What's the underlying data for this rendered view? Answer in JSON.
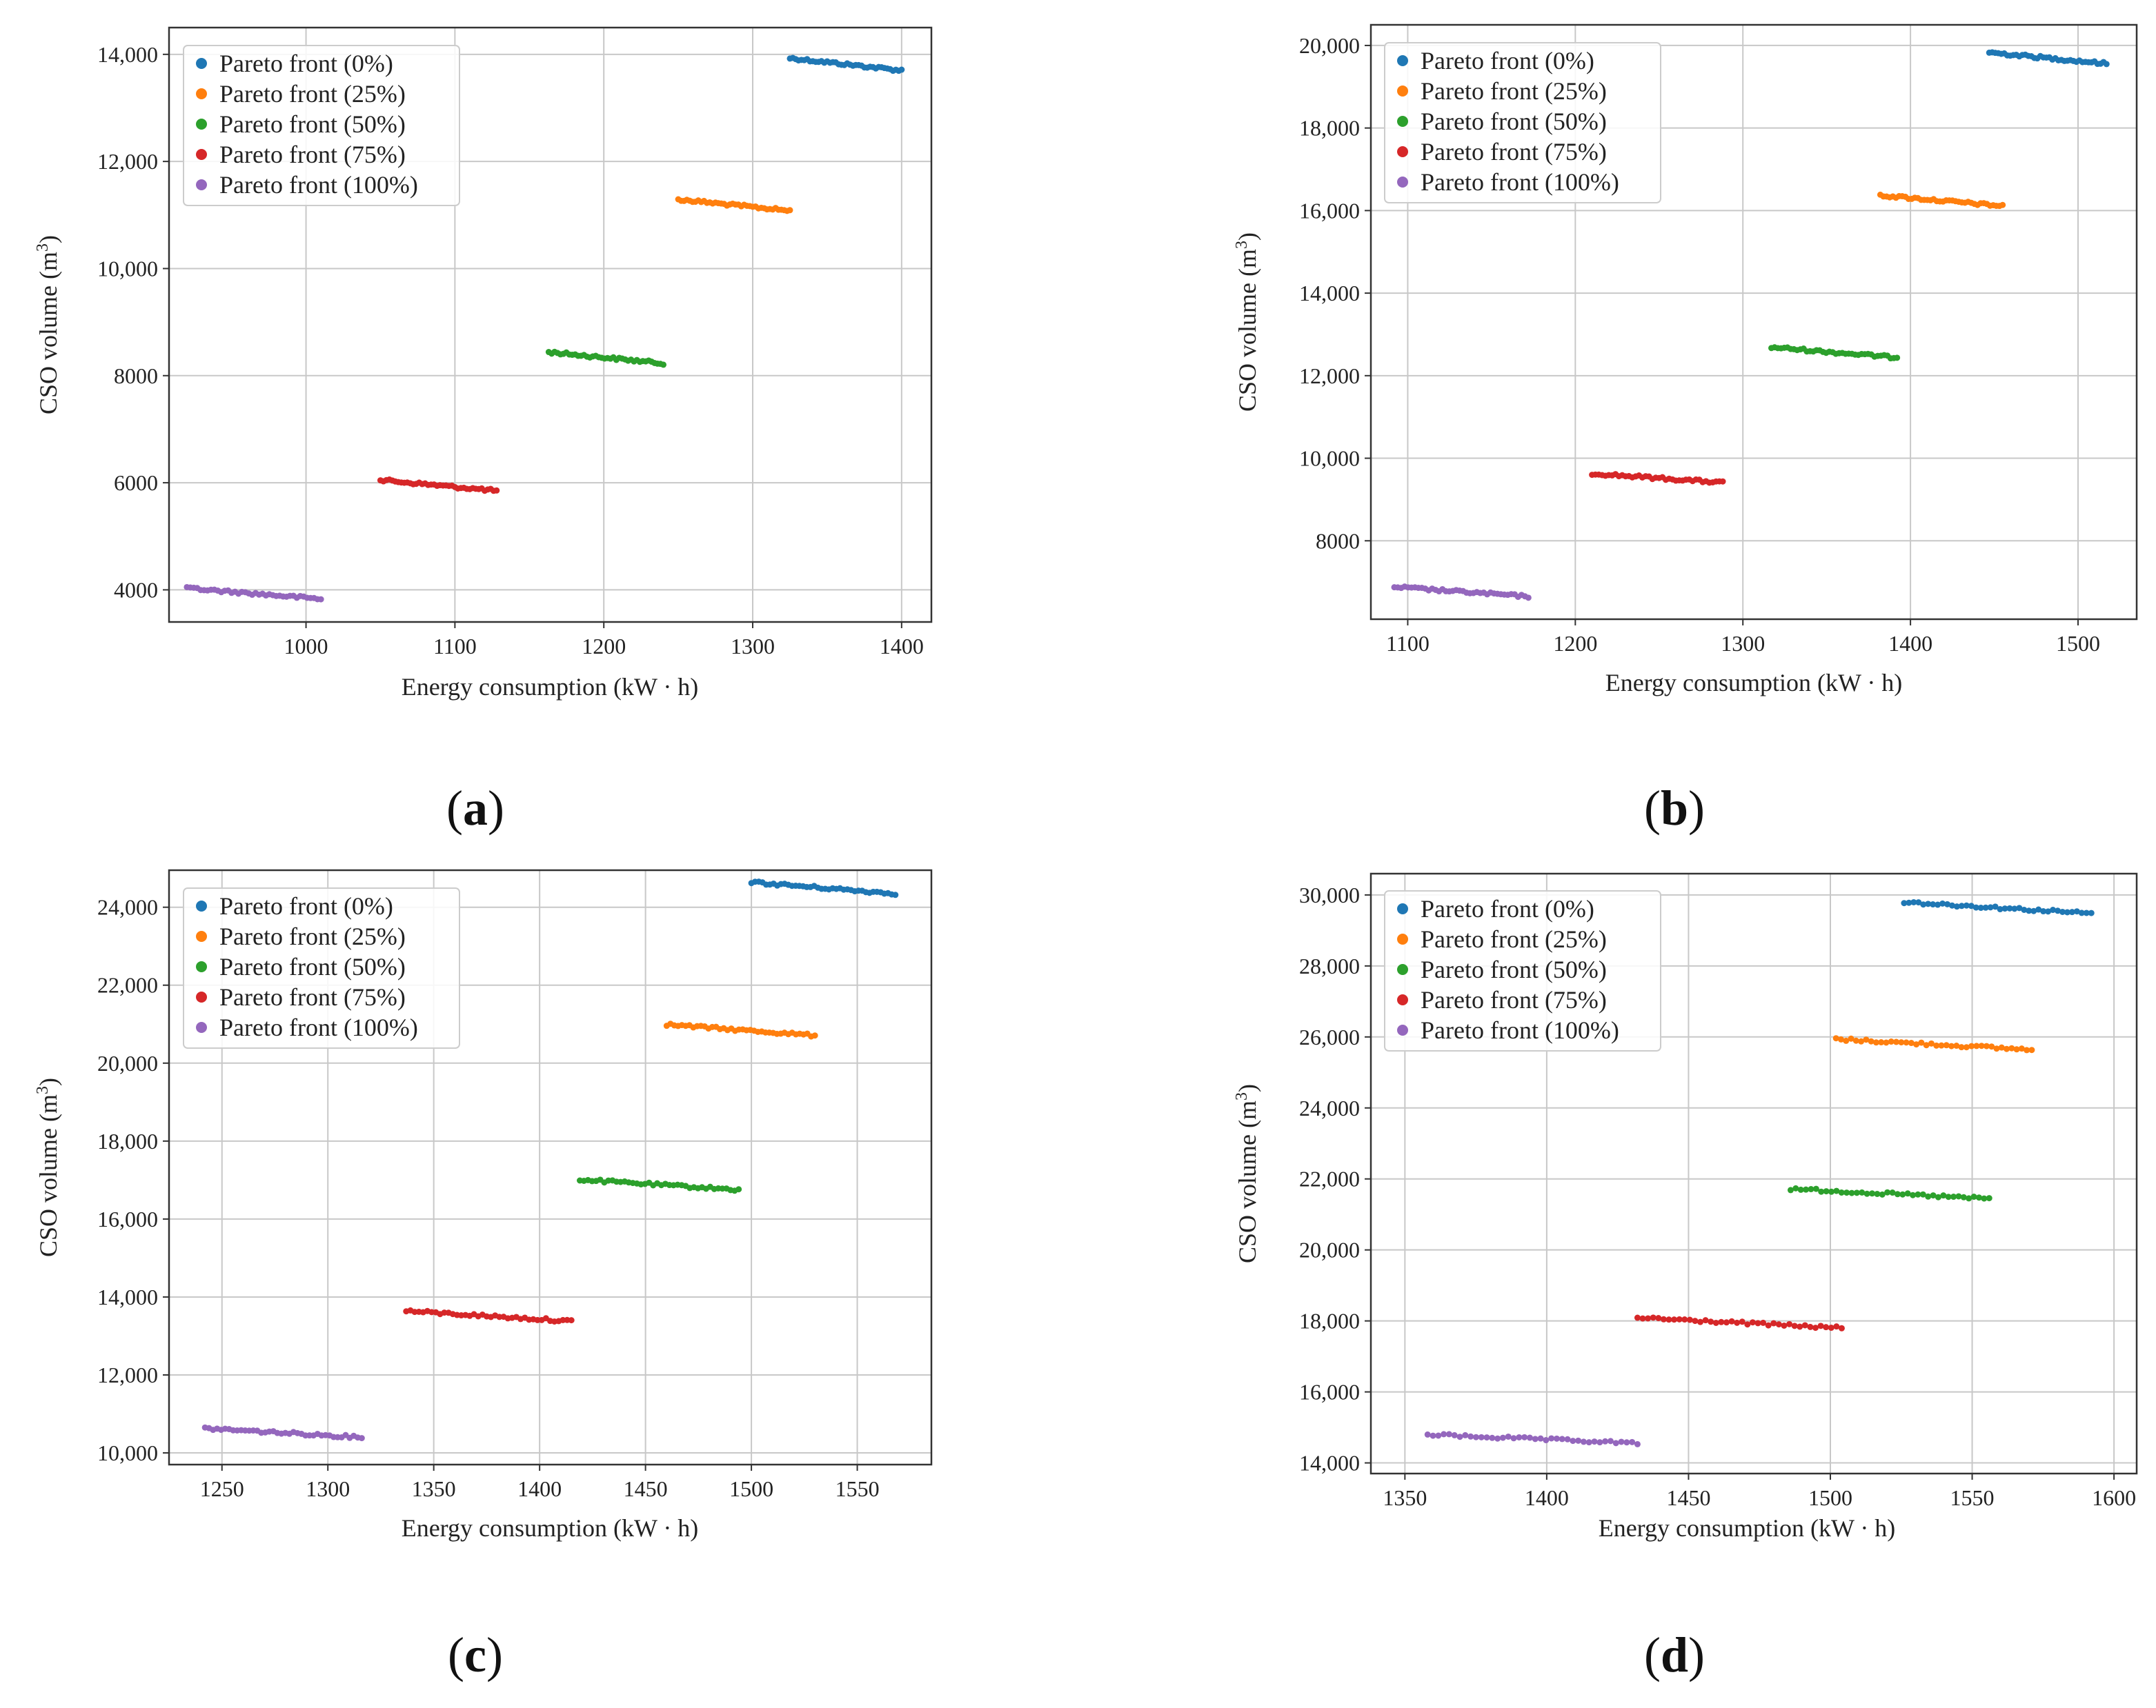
{
  "figure": {
    "panels": [
      "a",
      "b",
      "c",
      "d"
    ]
  },
  "chart_data": [
    {
      "id": "a",
      "type": "scatter",
      "panel_label": "a",
      "xlabel": "Energy consumption (kW · h)",
      "ylabel_main": "CSO volume (m",
      "ylabel_sup": "3",
      "ylabel_end": ")",
      "xlim": [
        908,
        1420
      ],
      "ylim": [
        3400,
        14500
      ],
      "xticks": [
        1000,
        1100,
        1200,
        1300,
        1400
      ],
      "xtick_labels": [
        "1000",
        "1100",
        "1200",
        "1300",
        "1400"
      ],
      "yticks": [
        4000,
        6000,
        8000,
        10000,
        12000,
        14000
      ],
      "ytick_labels": [
        "4000",
        "6000",
        "8000",
        "10,000",
        "12,000",
        "14,000"
      ],
      "legend_position": "top-left",
      "series": [
        {
          "name": "Pareto front (0%)",
          "color": "#1f77b4",
          "x_range": [
            1325,
            1400
          ],
          "y_range": [
            13930,
            13700
          ],
          "n": 40
        },
        {
          "name": "Pareto front (25%)",
          "color": "#ff7f0e",
          "x_range": [
            1250,
            1325
          ],
          "y_range": [
            11290,
            11080
          ],
          "n": 40
        },
        {
          "name": "Pareto front (50%)",
          "color": "#2ca02c",
          "x_range": [
            1163,
            1240
          ],
          "y_range": [
            8440,
            8230
          ],
          "n": 40
        },
        {
          "name": "Pareto front (75%)",
          "color": "#d62728",
          "x_range": [
            1050,
            1128
          ],
          "y_range": [
            6050,
            5850
          ],
          "n": 40
        },
        {
          "name": "Pareto front (100%)",
          "color": "#9467bd",
          "x_range": [
            920,
            1010
          ],
          "y_range": [
            4030,
            3830
          ],
          "n": 40
        }
      ]
    },
    {
      "id": "b",
      "type": "scatter",
      "panel_label": "b",
      "xlabel": "Energy consumption (kW · h)",
      "ylabel_main": "CSO volume (m",
      "ylabel_sup": "3",
      "ylabel_end": ")",
      "xlim": [
        1078,
        1535
      ],
      "ylim": [
        6100,
        20500
      ],
      "xticks": [
        1100,
        1200,
        1300,
        1400,
        1500
      ],
      "xtick_labels": [
        "1100",
        "1200",
        "1300",
        "1400",
        "1500"
      ],
      "yticks": [
        8000,
        10000,
        12000,
        14000,
        16000,
        18000,
        20000
      ],
      "ytick_labels": [
        "8000",
        "10,000",
        "12,000",
        "14,000",
        "16,000",
        "18,000",
        "20,000"
      ],
      "legend_position": "top-left",
      "series": [
        {
          "name": "Pareto front (0%)",
          "color": "#1f77b4",
          "x_range": [
            1447,
            1517
          ],
          "y_range": [
            19830,
            19560
          ],
          "n": 40
        },
        {
          "name": "Pareto front (25%)",
          "color": "#ff7f0e",
          "x_range": [
            1382,
            1455
          ],
          "y_range": [
            16370,
            16110
          ],
          "n": 40
        },
        {
          "name": "Pareto front (50%)",
          "color": "#2ca02c",
          "x_range": [
            1317,
            1392
          ],
          "y_range": [
            12690,
            12440
          ],
          "n": 40
        },
        {
          "name": "Pareto front (75%)",
          "color": "#d62728",
          "x_range": [
            1210,
            1288
          ],
          "y_range": [
            9630,
            9410
          ],
          "n": 40
        },
        {
          "name": "Pareto front (100%)",
          "color": "#9467bd",
          "x_range": [
            1092,
            1172
          ],
          "y_range": [
            6880,
            6650
          ],
          "n": 40
        }
      ]
    },
    {
      "id": "c",
      "type": "scatter",
      "panel_label": "c",
      "xlabel": "Energy consumption (kW · h)",
      "ylabel_main": "CSO volume (m",
      "ylabel_sup": "3",
      "ylabel_end": ")",
      "xlim": [
        1225,
        1585
      ],
      "ylim": [
        9700,
        24950
      ],
      "xticks": [
        1250,
        1300,
        1350,
        1400,
        1450,
        1500,
        1550
      ],
      "xtick_labels": [
        "1250",
        "1300",
        "1350",
        "1400",
        "1450",
        "1500",
        "1550"
      ],
      "yticks": [
        10000,
        12000,
        14000,
        16000,
        18000,
        20000,
        22000,
        24000
      ],
      "ytick_labels": [
        "10,000",
        "12,000",
        "14,000",
        "16,000",
        "18,000",
        "20,000",
        "22,000",
        "24,000"
      ],
      "legend_position": "top-left",
      "series": [
        {
          "name": "Pareto front (0%)",
          "color": "#1f77b4",
          "x_range": [
            1500,
            1568
          ],
          "y_range": [
            24640,
            24350
          ],
          "n": 40
        },
        {
          "name": "Pareto front (25%)",
          "color": "#ff7f0e",
          "x_range": [
            1460,
            1530
          ],
          "y_range": [
            20990,
            20710
          ],
          "n": 40
        },
        {
          "name": "Pareto front (50%)",
          "color": "#2ca02c",
          "x_range": [
            1419,
            1494
          ],
          "y_range": [
            17010,
            16750
          ],
          "n": 40
        },
        {
          "name": "Pareto front (75%)",
          "color": "#d62728",
          "x_range": [
            1337,
            1415
          ],
          "y_range": [
            13640,
            13380
          ],
          "n": 40
        },
        {
          "name": "Pareto front (100%)",
          "color": "#9467bd",
          "x_range": [
            1242,
            1316
          ],
          "y_range": [
            10630,
            10400
          ],
          "n": 40
        }
      ]
    },
    {
      "id": "d",
      "type": "scatter",
      "panel_label": "d",
      "xlabel": "Energy consumption (kW · h)",
      "ylabel_main": "CSO volume (m",
      "ylabel_sup": "3",
      "ylabel_end": ")",
      "xlim": [
        1338,
        1608
      ],
      "ylim": [
        13700,
        30600
      ],
      "xticks": [
        1350,
        1400,
        1450,
        1500,
        1550,
        1600
      ],
      "xtick_labels": [
        "1350",
        "1400",
        "1450",
        "1500",
        "1550",
        "1600"
      ],
      "yticks": [
        14000,
        16000,
        18000,
        20000,
        22000,
        24000,
        26000,
        28000,
        30000
      ],
      "ytick_labels": [
        "14,000",
        "16,000",
        "18,000",
        "20,000",
        "22,000",
        "24,000",
        "26,000",
        "28,000",
        "30,000"
      ],
      "legend_position": "top-left",
      "series": [
        {
          "name": "Pareto front (0%)",
          "color": "#1f77b4",
          "x_range": [
            1526,
            1592
          ],
          "y_range": [
            29800,
            29480
          ],
          "n": 40
        },
        {
          "name": "Pareto front (25%)",
          "color": "#ff7f0e",
          "x_range": [
            1502,
            1571
          ],
          "y_range": [
            25940,
            25640
          ],
          "n": 40
        },
        {
          "name": "Pareto front (50%)",
          "color": "#2ca02c",
          "x_range": [
            1486,
            1556
          ],
          "y_range": [
            21720,
            21440
          ],
          "n": 40
        },
        {
          "name": "Pareto front (75%)",
          "color": "#d62728",
          "x_range": [
            1432,
            1504
          ],
          "y_range": [
            18090,
            17800
          ],
          "n": 40
        },
        {
          "name": "Pareto front (100%)",
          "color": "#9467bd",
          "x_range": [
            1358,
            1432
          ],
          "y_range": [
            14800,
            14550
          ],
          "n": 40
        }
      ]
    }
  ]
}
